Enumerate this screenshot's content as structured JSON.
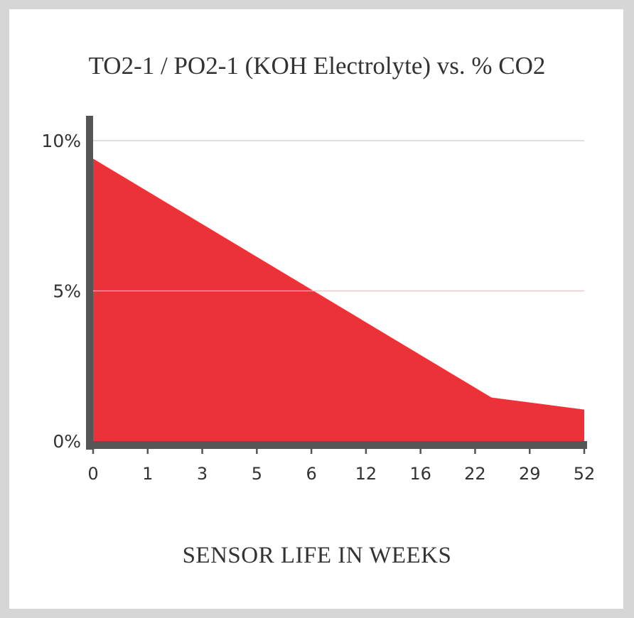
{
  "colors": {
    "background": "#d6d6d6",
    "card": "#ffffff",
    "area_fill": "#ec3239",
    "axis": "#555555",
    "grid": "#cccccc",
    "text": "#333333"
  },
  "chart_data": {
    "type": "area",
    "title": "TO2-1 / PO2-1 (KOH Electrolyte) vs. % CO2",
    "xlabel": "SENSOR LIFE IN WEEKS",
    "ylabel": "",
    "categories": [
      "0",
      "1",
      "3",
      "5",
      "6",
      "12",
      "16",
      "22",
      "29",
      "52"
    ],
    "y_ticks": [
      {
        "value": 0,
        "label": "0%"
      },
      {
        "value": 5,
        "label": "5%"
      },
      {
        "value": 10,
        "label": "10%"
      }
    ],
    "ylim": [
      0,
      10
    ],
    "grid": true,
    "series": [
      {
        "points": [
          {
            "x": 0,
            "y": 9.4
          },
          {
            "x": 7.3,
            "y": 1.45
          },
          {
            "x": 9,
            "y": 1.05
          }
        ]
      }
    ]
  }
}
